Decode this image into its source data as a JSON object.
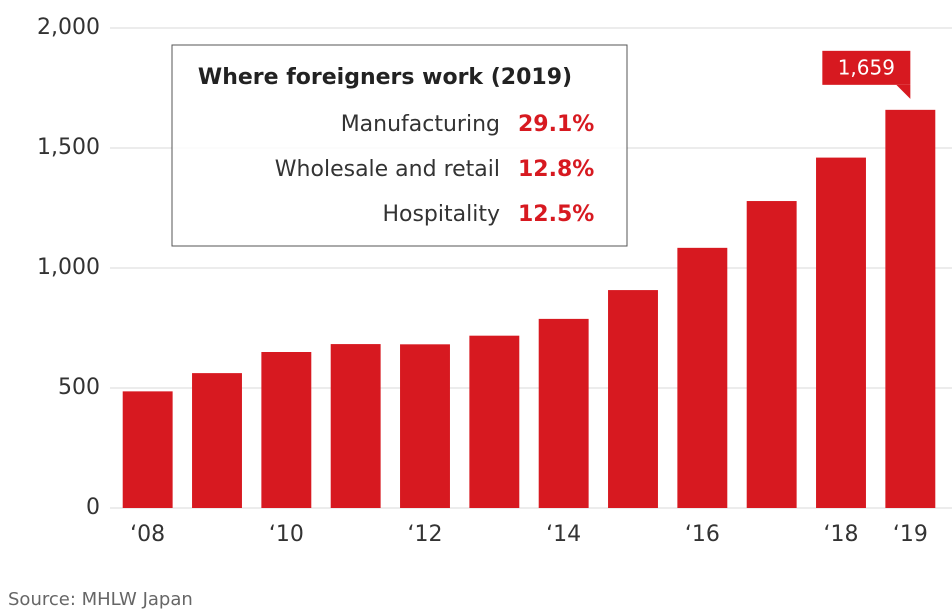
{
  "chart_data": {
    "type": "bar",
    "categories": [
      "‘08",
      null,
      "‘10",
      null,
      "‘12",
      null,
      "‘14",
      null,
      "‘16",
      null,
      "‘18",
      "‘19"
    ],
    "values": [
      486,
      562,
      650,
      683,
      682,
      718,
      788,
      908,
      1084,
      1279,
      1460,
      1659
    ],
    "value_labels": [
      null,
      null,
      null,
      null,
      null,
      null,
      null,
      null,
      null,
      null,
      null,
      "1,659"
    ],
    "color": "#d71920",
    "ylim": [
      0,
      2000
    ],
    "yticks": [
      0,
      500,
      {
        "value": 1000,
        "label": "1,000"
      },
      {
        "value": 1500,
        "label": "1,500"
      },
      {
        "value": 2000,
        "label": "2,000"
      }
    ],
    "grid": true,
    "inset": {
      "title": "Where foreigners work (2019)",
      "categories": [
        "Manufacturing",
        "Wholesale and retail",
        "Hospitality"
      ],
      "values": [
        29.1,
        12.8,
        12.5
      ],
      "value_labels": [
        "29.1%",
        "12.8%",
        "12.5%"
      ]
    },
    "source": "Source: MHLW Japan"
  }
}
